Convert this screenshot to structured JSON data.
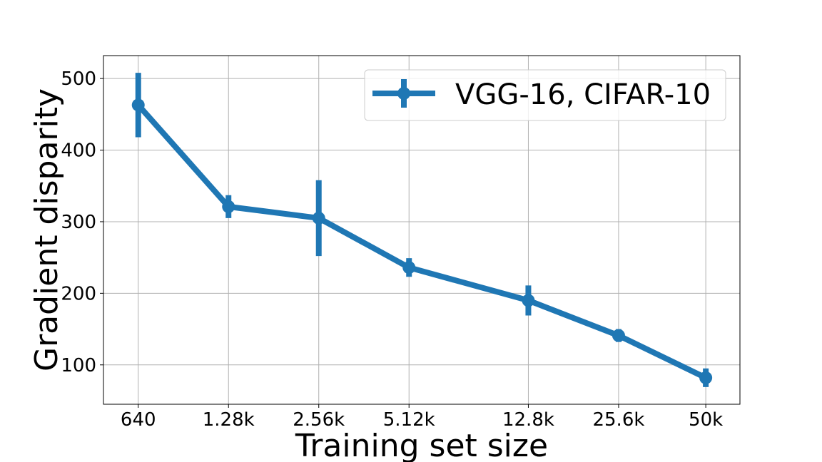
{
  "chart_data": {
    "type": "line",
    "title": "",
    "xlabel": "Training set size",
    "ylabel": "Gradient disparity",
    "categories": [
      "640",
      "1.28k",
      "2.56k",
      "5.12k",
      "12.8k",
      "25.6k",
      "50k"
    ],
    "x": [
      640,
      1280,
      2560,
      5120,
      12800,
      25600,
      50000
    ],
    "xscale": "log",
    "xlim": [
      490,
      65000
    ],
    "ylim": [
      45,
      532
    ],
    "yticks": [
      100,
      200,
      300,
      400,
      500
    ],
    "ytick_labels": [
      "100",
      "200",
      "300",
      "400",
      "500"
    ],
    "grid": true,
    "legend_position": "upper right",
    "series": [
      {
        "name": "VGG-16, CIFAR-10",
        "color": "#1f77b4",
        "values": [
          463,
          321,
          305,
          236,
          190,
          141,
          82
        ],
        "errors": [
          45,
          16,
          53,
          13,
          21,
          9,
          13
        ]
      }
    ]
  }
}
